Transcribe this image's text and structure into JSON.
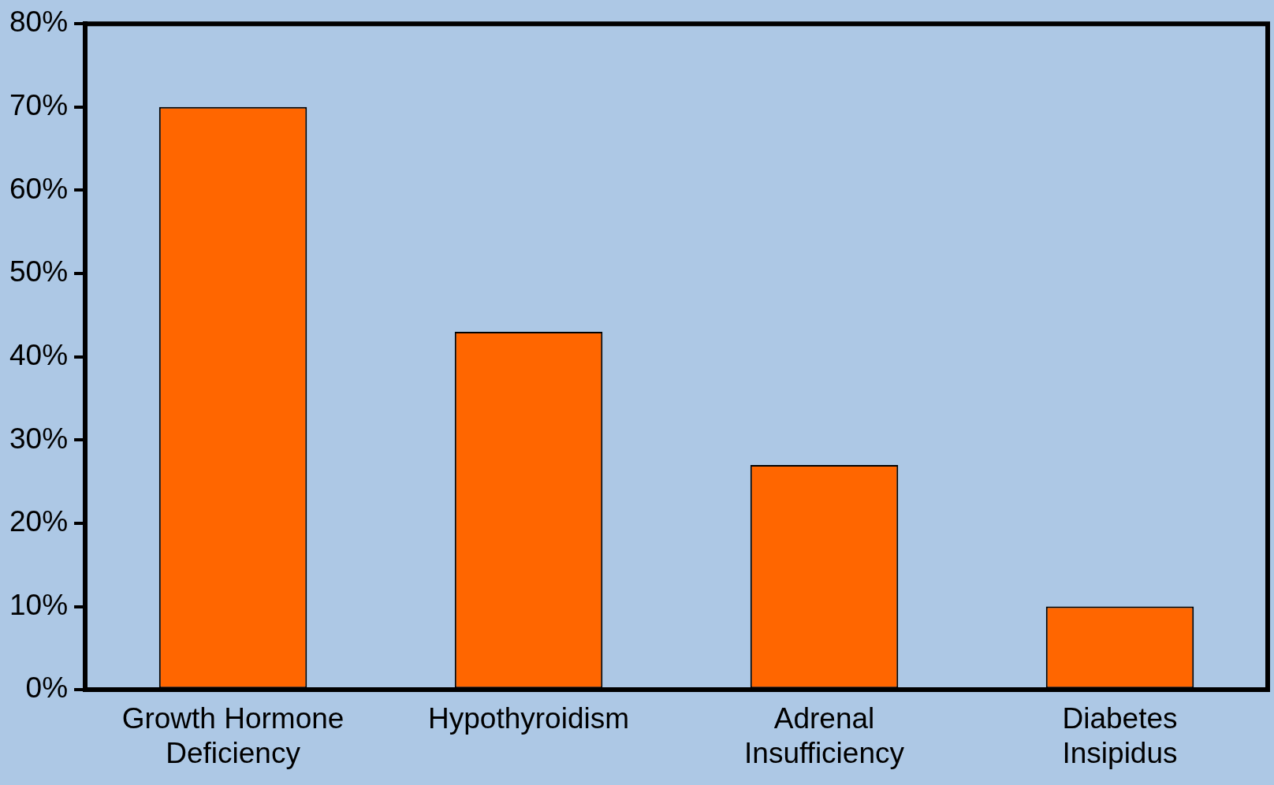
{
  "chart_data": {
    "type": "bar",
    "categories": [
      "Growth Hormone Deficiency",
      "Hypothyroidism",
      "Adrenal Insufficiency",
      "Diabetes Insipidus"
    ],
    "values": [
      70,
      43,
      27,
      10
    ],
    "color": "#ff6600",
    "ylim": [
      0,
      80
    ],
    "yticks": [
      {
        "value": 0,
        "label": "0%"
      },
      {
        "value": 10,
        "label": "10%"
      },
      {
        "value": 20,
        "label": "20%"
      },
      {
        "value": 30,
        "label": "30%"
      },
      {
        "value": 40,
        "label": "40%"
      },
      {
        "value": 50,
        "label": "50%"
      },
      {
        "value": 60,
        "label": "60%"
      },
      {
        "value": 70,
        "label": "70%"
      },
      {
        "value": 80,
        "label": "80%"
      }
    ],
    "grid": false,
    "legend": false
  }
}
